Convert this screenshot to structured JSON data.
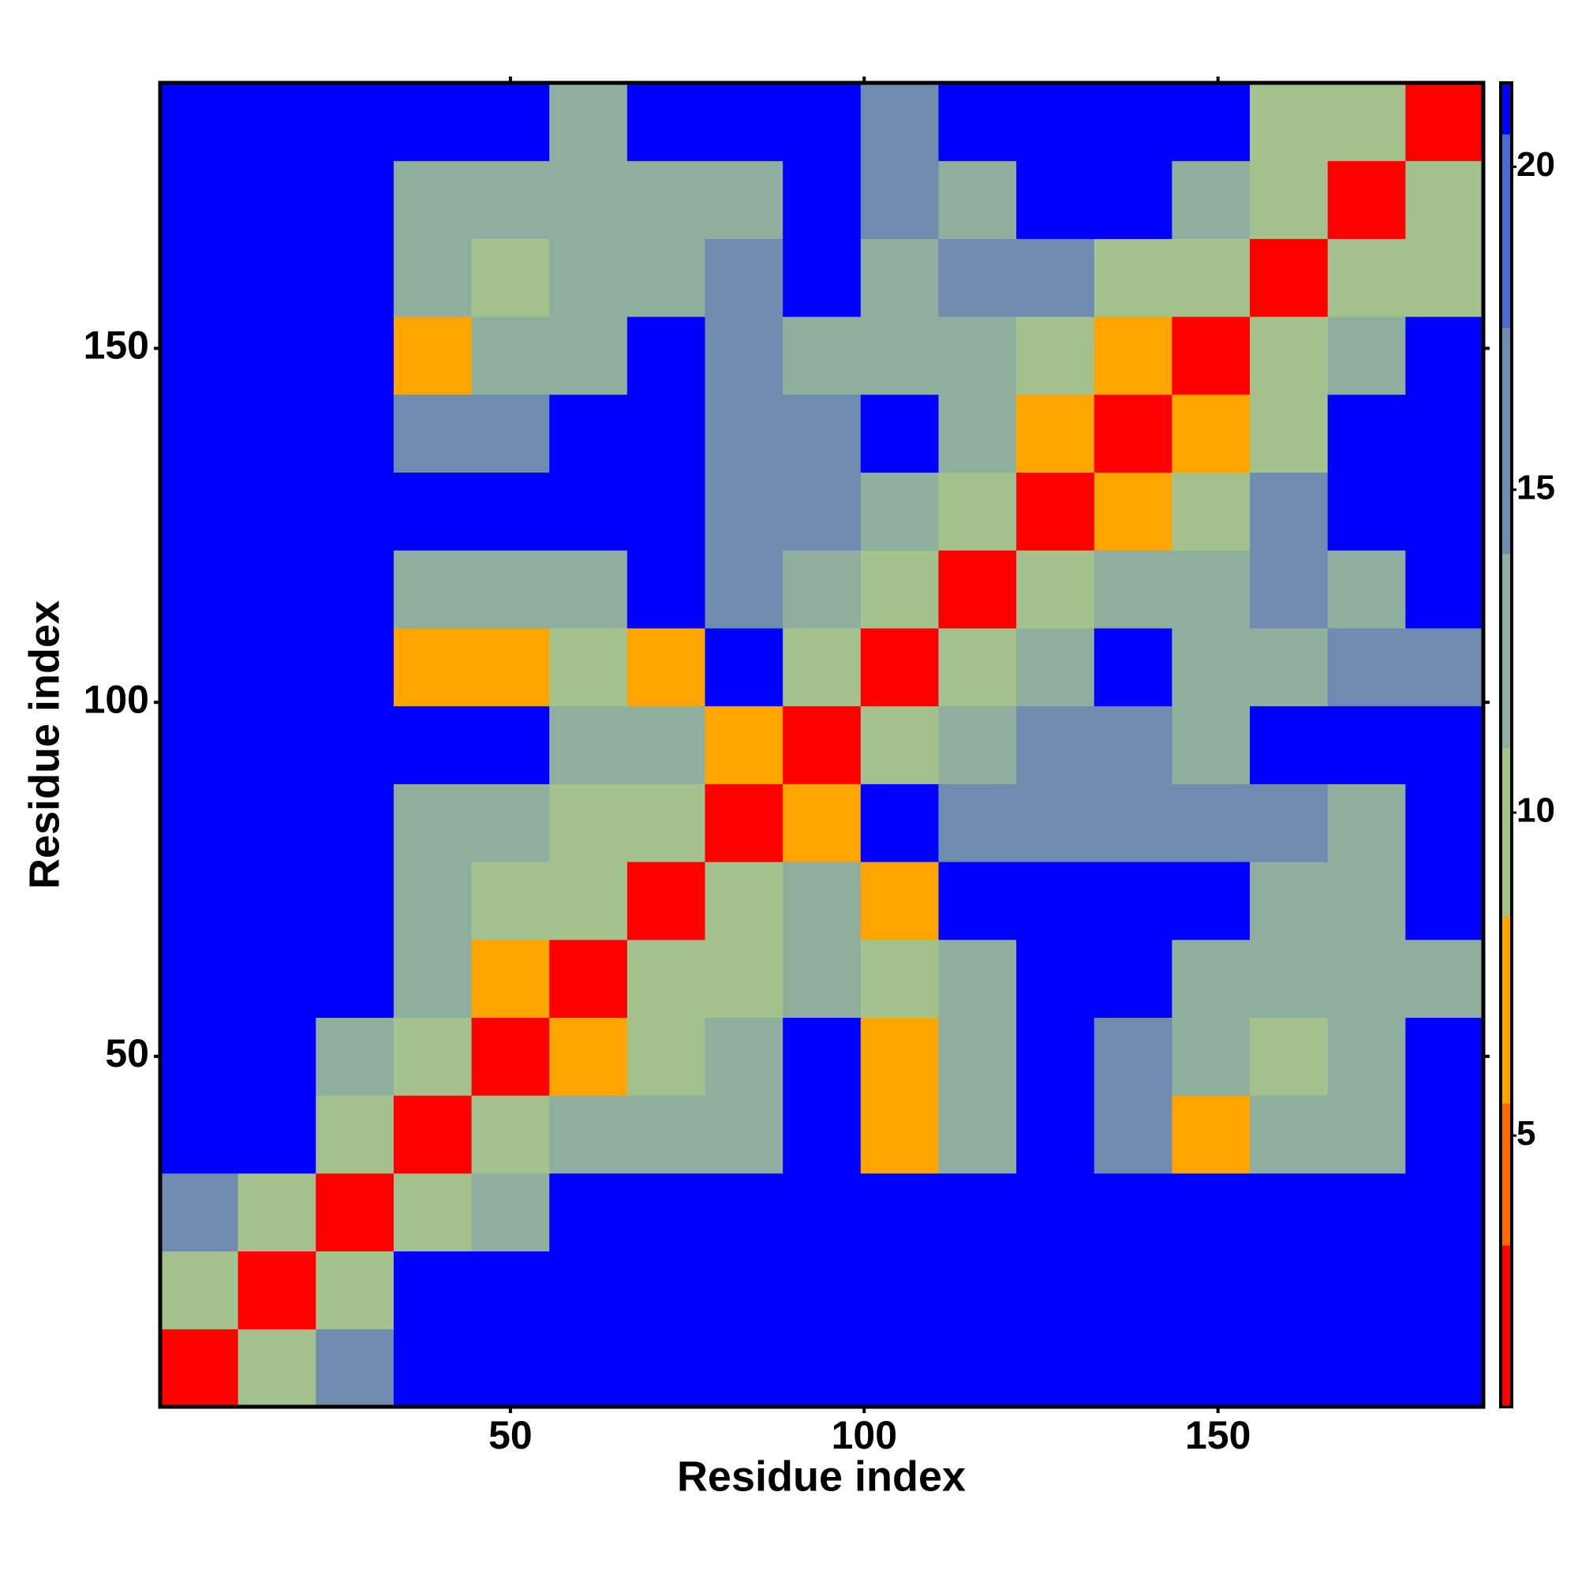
{
  "chart_data": {
    "type": "heatmap",
    "x_label": "Residue index",
    "y_label": "Residue index",
    "x": [
      6,
      17,
      28,
      39,
      50,
      61,
      72,
      83,
      94,
      105,
      116,
      127,
      138,
      149,
      160,
      171,
      182
    ],
    "y": [
      6,
      17,
      28,
      39,
      50,
      61,
      72,
      83,
      94,
      105,
      116,
      127,
      138,
      149,
      160,
      171,
      182
    ],
    "z": [
      [
        3,
        9,
        14,
        21,
        21,
        21,
        21,
        21,
        21,
        21,
        21,
        21,
        21,
        21,
        21,
        21,
        21
      ],
      [
        9,
        3,
        9,
        21,
        21,
        21,
        21,
        21,
        21,
        21,
        21,
        21,
        21,
        21,
        21,
        21,
        21
      ],
      [
        14,
        9,
        3,
        9,
        12,
        21,
        21,
        21,
        21,
        21,
        21,
        21,
        21,
        21,
        21,
        21,
        21
      ],
      [
        21,
        21,
        9,
        3,
        9,
        12,
        12,
        13,
        21,
        7,
        11,
        21,
        14,
        7,
        11,
        13,
        21
      ],
      [
        21,
        21,
        12,
        9,
        3,
        8,
        10,
        13,
        21,
        8,
        12,
        21,
        14,
        11,
        9,
        12,
        21
      ],
      [
        21,
        21,
        21,
        12,
        8,
        3,
        9,
        10,
        13,
        9,
        12,
        21,
        21,
        12,
        13,
        13,
        13
      ],
      [
        21,
        21,
        21,
        12,
        10,
        9,
        3,
        9,
        11,
        8,
        21,
        21,
        21,
        21,
        13,
        13,
        21
      ],
      [
        21,
        21,
        21,
        13,
        13,
        10,
        9,
        3,
        7,
        21,
        15,
        15,
        15,
        14,
        14,
        13,
        21
      ],
      [
        21,
        21,
        21,
        21,
        21,
        13,
        11,
        7,
        3,
        9,
        11,
        15,
        16,
        13,
        21,
        21,
        21
      ],
      [
        21,
        21,
        21,
        7,
        8,
        9,
        8,
        21,
        9,
        3,
        9,
        11,
        21,
        13,
        12,
        14,
        14
      ],
      [
        21,
        21,
        21,
        11,
        12,
        12,
        21,
        15,
        11,
        9,
        3,
        9,
        12,
        13,
        14,
        13,
        21
      ],
      [
        21,
        21,
        21,
        21,
        21,
        21,
        21,
        15,
        15,
        11,
        9,
        3,
        7,
        10,
        14,
        21,
        21
      ],
      [
        21,
        21,
        21,
        14,
        14,
        21,
        21,
        15,
        16,
        21,
        12,
        7,
        3,
        7,
        10,
        21,
        21
      ],
      [
        21,
        21,
        21,
        7,
        11,
        12,
        21,
        14,
        13,
        13,
        13,
        10,
        7,
        3,
        9,
        11,
        21
      ],
      [
        21,
        21,
        21,
        11,
        9,
        13,
        13,
        14,
        21,
        12,
        14,
        14,
        10,
        9,
        3,
        9,
        10
      ],
      [
        21,
        21,
        21,
        13,
        12,
        13,
        13,
        13,
        21,
        14,
        13,
        21,
        21,
        11,
        9,
        3,
        9
      ],
      [
        21,
        21,
        21,
        21,
        21,
        13,
        21,
        21,
        21,
        14,
        21,
        21,
        21,
        21,
        10,
        9,
        3
      ]
    ],
    "xlim": [
      0.5,
      187.5
    ],
    "ylim": [
      0.5,
      187.5
    ],
    "xticks": [
      50,
      100,
      150
    ],
    "yticks": [
      50,
      100,
      150
    ],
    "zlim": [
      0.8,
      21.3
    ],
    "zticks": [
      5,
      10,
      15,
      20
    ],
    "color_levels": [
      0.8,
      3.3,
      5.5,
      8.4,
      11,
      14,
      17.5,
      20.5,
      21.3
    ],
    "colors": [
      "#ff0000",
      "#ff6a00",
      "#ffa500",
      "#a3c28e",
      "#8fae9e",
      "#6f8cb0",
      "#4a6ad0",
      "#0000ff"
    ]
  }
}
